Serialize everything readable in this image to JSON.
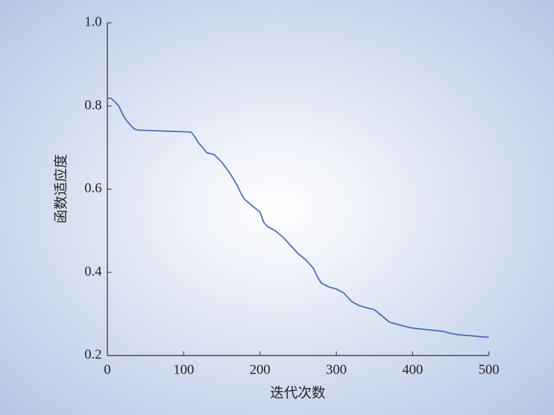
{
  "chart_data": {
    "type": "line",
    "xlabel": "迭代次数",
    "ylabel": "函数适应度",
    "x": [
      0,
      5,
      10,
      15,
      20,
      25,
      30,
      35,
      40,
      100,
      110,
      115,
      120,
      125,
      130,
      140,
      150,
      160,
      170,
      175,
      180,
      190,
      200,
      205,
      210,
      220,
      230,
      240,
      250,
      260,
      270,
      275,
      280,
      290,
      300,
      310,
      320,
      330,
      340,
      350,
      360,
      370,
      380,
      390,
      400,
      420,
      440,
      450,
      460,
      480,
      490,
      500
    ],
    "series": [
      {
        "color": "#4169b8",
        "values": [
          0.82,
          0.818,
          0.81,
          0.8,
          0.78,
          0.765,
          0.755,
          0.745,
          0.742,
          0.738,
          0.737,
          0.725,
          0.71,
          0.7,
          0.688,
          0.683,
          0.665,
          0.64,
          0.61,
          0.59,
          0.575,
          0.56,
          0.545,
          0.52,
          0.51,
          0.5,
          0.485,
          0.465,
          0.445,
          0.43,
          0.41,
          0.39,
          0.375,
          0.365,
          0.36,
          0.35,
          0.33,
          0.32,
          0.315,
          0.31,
          0.295,
          0.28,
          0.275,
          0.27,
          0.266,
          0.262,
          0.258,
          0.253,
          0.25,
          0.247,
          0.245,
          0.244
        ]
      }
    ],
    "xlim": [
      0,
      500
    ],
    "xticks": [
      0,
      100,
      200,
      300,
      400,
      500
    ],
    "ylim": [
      0.2,
      1.0
    ],
    "yticks": [
      0.2,
      0.4,
      0.6,
      0.8,
      {
        "value": 1.0,
        "label": "1.0"
      }
    ]
  }
}
